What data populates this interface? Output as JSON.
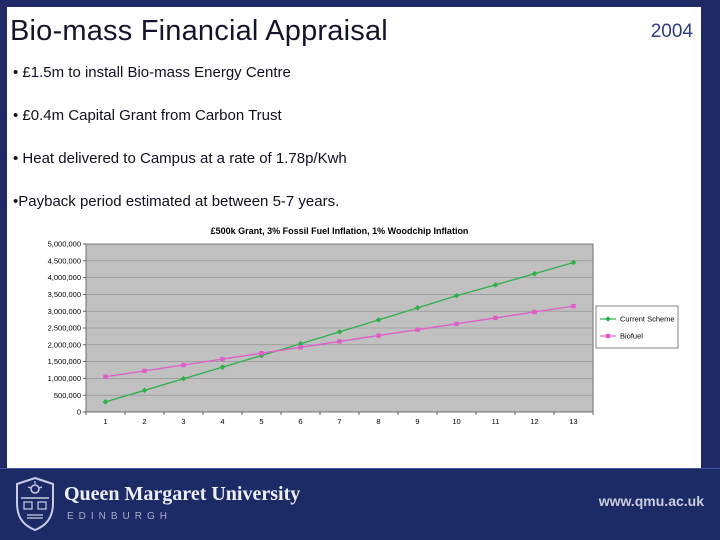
{
  "slide": {
    "title": "Bio-mass Financial Appraisal",
    "year": "2004",
    "bullets": [
      "• £1.5m to install Bio-mass Energy Centre",
      "• £0.4m Capital Grant from Carbon Trust",
      "• Heat delivered to Campus at a rate of 1.78p/Kwh",
      "•Payback period estimated at between 5-7 years."
    ]
  },
  "chart_data": {
    "type": "line",
    "title": "£500k Grant, 3% Fossil Fuel Inflation, 1% Woodchip Inflation",
    "categories": [
      1,
      2,
      3,
      4,
      5,
      6,
      7,
      8,
      9,
      10,
      11,
      12,
      13
    ],
    "series": [
      {
        "name": "Current Scheme",
        "color": "#2db04a",
        "marker": "diamond",
        "values": [
          300000,
          645000,
          990000,
          1335000,
          1680000,
          2030000,
          2385000,
          2740000,
          3100000,
          3460000,
          3785000,
          4115000,
          4450000
        ]
      },
      {
        "name": "Biofuel",
        "color": "#e05ec9",
        "marker": "square",
        "values": [
          1050000,
          1225000,
          1400000,
          1575000,
          1750000,
          1925000,
          2100000,
          2275000,
          2450000,
          2625000,
          2800000,
          2975000,
          3150000
        ]
      }
    ],
    "ylim": [
      0,
      5000000
    ],
    "ytick_step": 500000,
    "grid": true,
    "legend_position": "right",
    "plot_bg": "#c0c0c0",
    "xlabel": "",
    "ylabel": ""
  },
  "footer": {
    "university": "Queen Margaret University",
    "city": "EDINBURGH",
    "website": "www.qmu.ac.uk"
  },
  "colors": {
    "frame_navy": "#202a66",
    "footer_navy": "#1c2a66",
    "current_scheme": "#2db04a",
    "biofuel": "#e05ec9",
    "plot_background": "#c0c0c0"
  }
}
